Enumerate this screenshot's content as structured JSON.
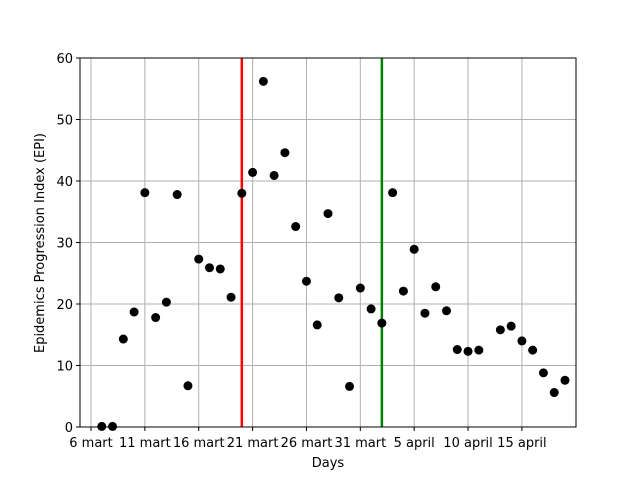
{
  "chart_data": {
    "type": "scatter",
    "xlabel": "Days",
    "ylabel": "Epidemics Progression Index (EPI)",
    "grid": true,
    "ylim": [
      0,
      60
    ],
    "yticks": [
      0,
      10,
      20,
      30,
      40,
      50,
      60
    ],
    "xlim": [
      0,
      44
    ],
    "xticks": [
      {
        "x": 0,
        "label": "6 mart"
      },
      {
        "x": 5,
        "label": "11 mart"
      },
      {
        "x": 10,
        "label": "16 mart"
      },
      {
        "x": 15,
        "label": "21 mart"
      },
      {
        "x": 20,
        "label": "26 mart"
      },
      {
        "x": 25,
        "label": "31 mart"
      },
      {
        "x": 30,
        "label": "5 april"
      },
      {
        "x": 35,
        "label": "10 april"
      },
      {
        "x": 40,
        "label": "15 april"
      }
    ],
    "vlines": [
      {
        "x": 14,
        "color": "#ff0000"
      },
      {
        "x": 27,
        "color": "#008000"
      }
    ],
    "point_color": "#000000",
    "points": [
      [
        1,
        0.1
      ],
      [
        2,
        0.1
      ],
      [
        3,
        14.3
      ],
      [
        4,
        18.7
      ],
      [
        5,
        38.1
      ],
      [
        6,
        17.8
      ],
      [
        7,
        20.3
      ],
      [
        8,
        37.8
      ],
      [
        9,
        6.7
      ],
      [
        10,
        27.3
      ],
      [
        11,
        25.9
      ],
      [
        12,
        25.7
      ],
      [
        13,
        21.1
      ],
      [
        14,
        38.0
      ],
      [
        15,
        41.4
      ],
      [
        16,
        56.2
      ],
      [
        17,
        40.9
      ],
      [
        18,
        44.6
      ],
      [
        19,
        32.6
      ],
      [
        20,
        23.7
      ],
      [
        21,
        16.6
      ],
      [
        22,
        34.7
      ],
      [
        23,
        21.0
      ],
      [
        24,
        6.6
      ],
      [
        25,
        22.6
      ],
      [
        26,
        19.2
      ],
      [
        27,
        16.9
      ],
      [
        28,
        38.1
      ],
      [
        29,
        22.1
      ],
      [
        30,
        28.9
      ],
      [
        31,
        18.5
      ],
      [
        32,
        22.8
      ],
      [
        33,
        18.9
      ],
      [
        34,
        12.6
      ],
      [
        35,
        12.3
      ],
      [
        36,
        12.5
      ],
      [
        38,
        15.8
      ],
      [
        39,
        16.4
      ],
      [
        40,
        14.0
      ],
      [
        41,
        12.5
      ],
      [
        42,
        8.8
      ],
      [
        43,
        5.6
      ],
      [
        44,
        7.6
      ]
    ]
  }
}
